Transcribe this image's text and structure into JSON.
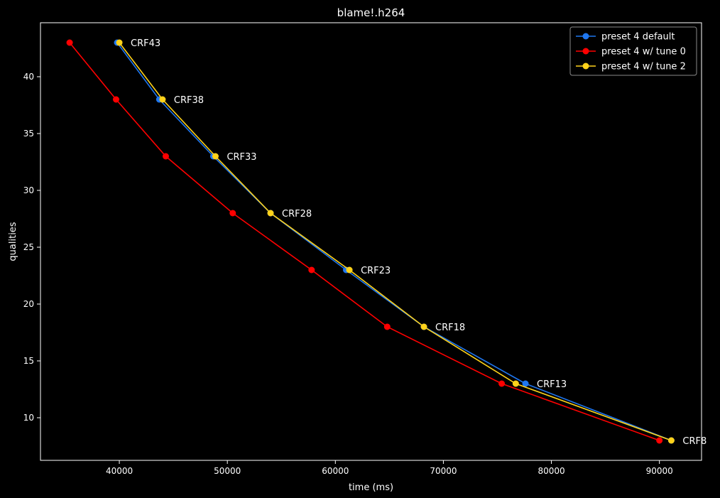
{
  "chart_data": {
    "type": "line",
    "title": "blame!.h264",
    "xlabel": "time (ms)",
    "ylabel": "qualities",
    "xlim": [
      32700,
      93900
    ],
    "ylim": [
      6.25,
      44.75
    ],
    "xticks": [
      40000,
      50000,
      60000,
      70000,
      80000,
      90000
    ],
    "yticks": [
      10,
      15,
      20,
      25,
      30,
      35,
      40
    ],
    "grid": false,
    "legend_position": "top-right",
    "series": [
      {
        "name": "preset 4 default",
        "color": "#1f77f0",
        "x": [
          39800,
          43700,
          48700,
          54000,
          61000,
          68200,
          77600,
          91100
        ],
        "y": [
          43,
          38,
          33,
          28,
          23,
          18,
          13,
          8
        ]
      },
      {
        "name": "preset 4 w/ tune 0",
        "color": "#ff0000",
        "x": [
          35400,
          39700,
          44300,
          50500,
          57800,
          64800,
          75400,
          90000
        ],
        "y": [
          43,
          38,
          33,
          28,
          23,
          18,
          13,
          8
        ]
      },
      {
        "name": "preset 4 w/ tune 2",
        "color": "#ffd21a",
        "x": [
          40000,
          44000,
          48900,
          54000,
          61300,
          68200,
          76700,
          91100
        ],
        "y": [
          43,
          38,
          33,
          28,
          23,
          18,
          13,
          8
        ]
      }
    ],
    "annotations": [
      {
        "text": "CRF43",
        "x": 40000,
        "y": 43
      },
      {
        "text": "CRF38",
        "x": 44000,
        "y": 38
      },
      {
        "text": "CRF33",
        "x": 48900,
        "y": 33
      },
      {
        "text": "CRF28",
        "x": 54000,
        "y": 28
      },
      {
        "text": "CRF23",
        "x": 61300,
        "y": 23
      },
      {
        "text": "CRF18",
        "x": 68200,
        "y": 18
      },
      {
        "text": "CRF13",
        "x": 77600,
        "y": 13
      },
      {
        "text": "CRF8",
        "x": 91100,
        "y": 8
      }
    ]
  }
}
